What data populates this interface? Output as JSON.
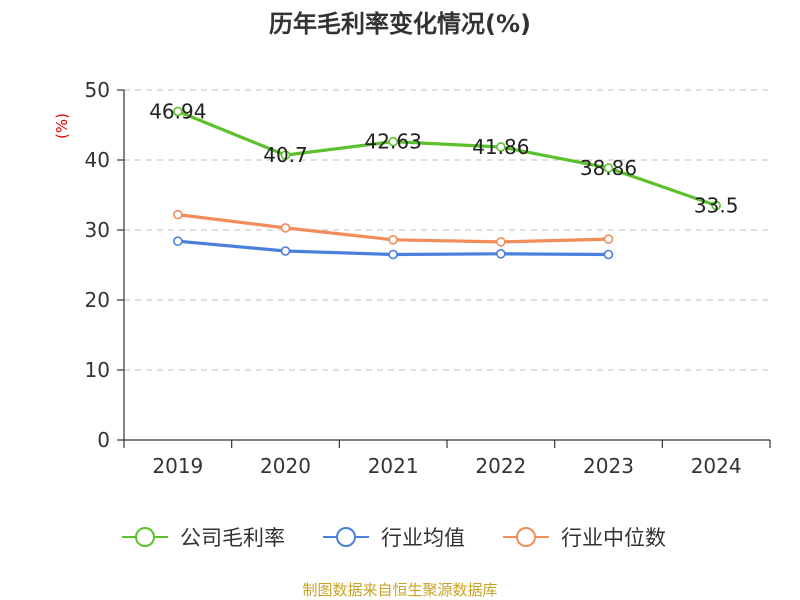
{
  "chart_data": {
    "type": "line",
    "title": "历年毛利率变化情况(%)",
    "ylabel": "(%)",
    "xlabel": "",
    "categories": [
      "2019",
      "2020",
      "2021",
      "2022",
      "2023",
      "2024"
    ],
    "ylim": [
      0,
      50
    ],
    "yticks": [
      0,
      10,
      20,
      30,
      40,
      50
    ],
    "grid": true,
    "legend_position": "bottom",
    "series": [
      {
        "name": "公司毛利率",
        "color": "#5dc12d",
        "show_labels": true,
        "values": [
          46.94,
          40.7,
          42.63,
          41.86,
          38.86,
          33.5
        ],
        "labels": [
          "46.94",
          "40.7",
          "42.63",
          "41.86",
          "38.86",
          "33.5"
        ]
      },
      {
        "name": "行业均值",
        "color": "#4a7fdc",
        "show_labels": false,
        "values": [
          28.4,
          27.0,
          26.5,
          26.6,
          26.5,
          null
        ]
      },
      {
        "name": "行业中位数",
        "color": "#f28c5b",
        "show_labels": false,
        "values": [
          32.2,
          30.3,
          28.6,
          28.3,
          28.7,
          null
        ]
      }
    ],
    "source": "制图数据来自恒生聚源数据库"
  }
}
